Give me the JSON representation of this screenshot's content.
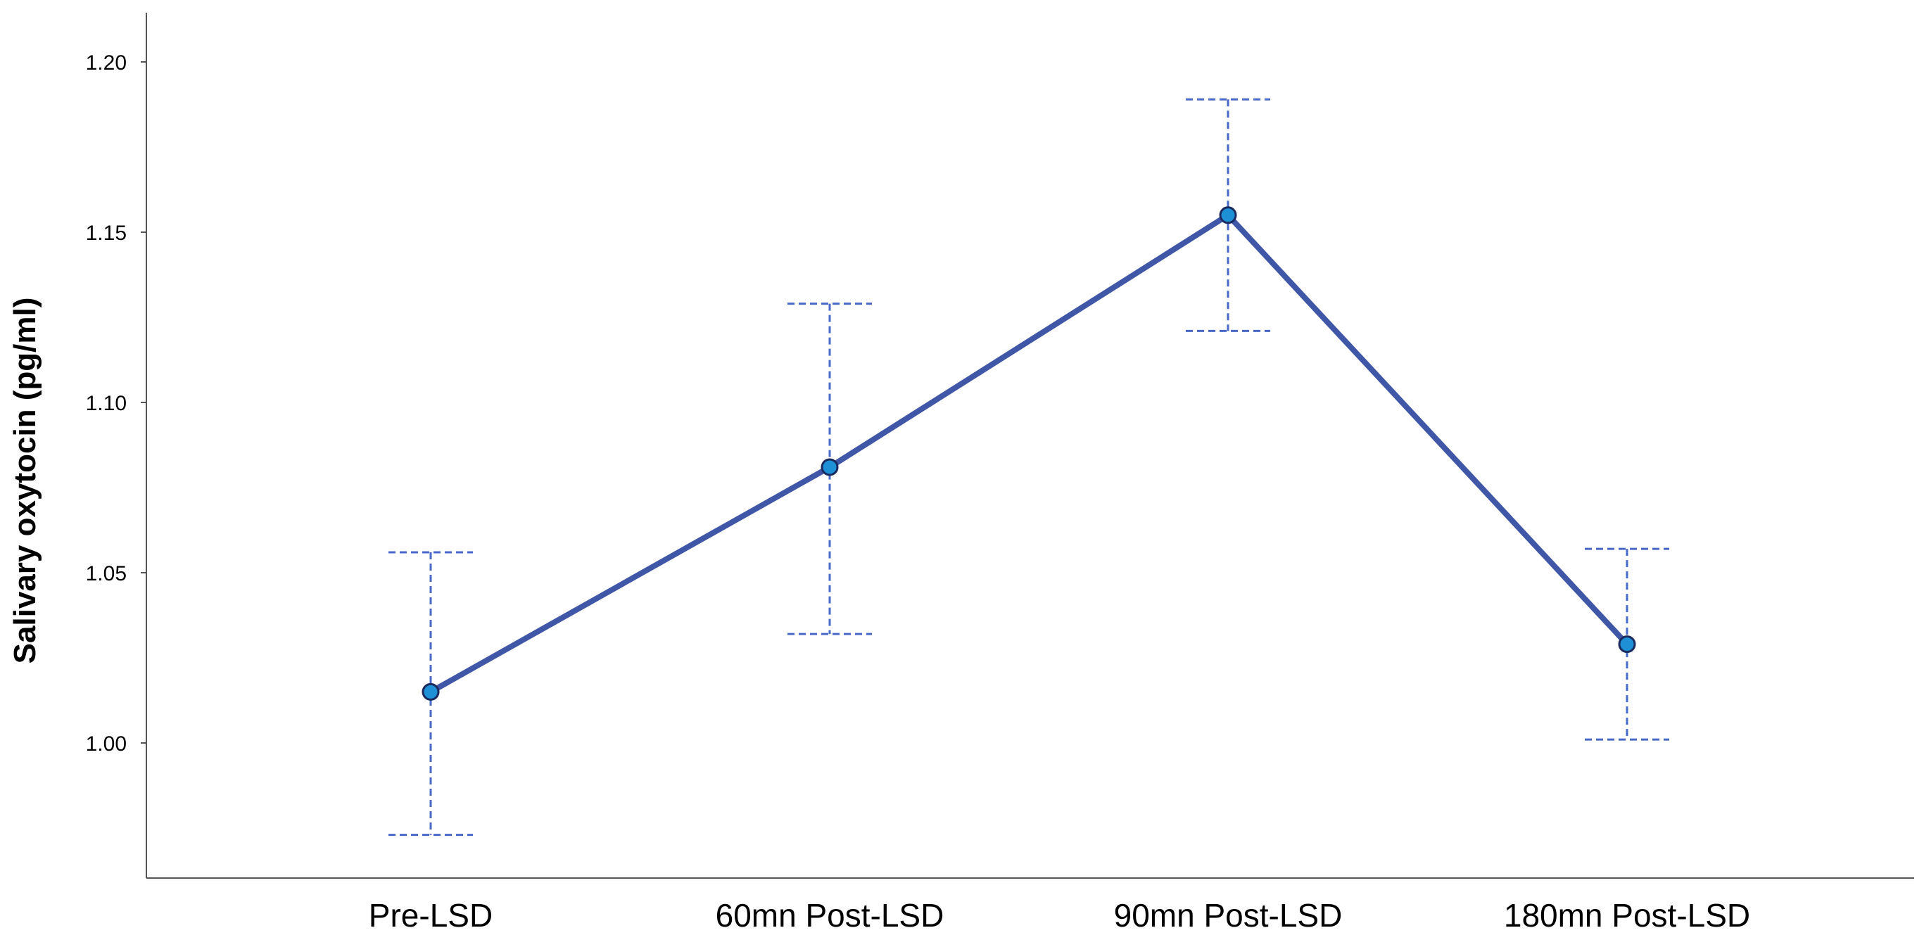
{
  "chart_data": {
    "type": "line",
    "title": "",
    "xlabel": "",
    "ylabel": "Salivary oxytocin (pg/ml)",
    "categories": [
      "Pre-LSD",
      "60mn Post-LSD",
      "90mn Post-LSD",
      "180mn Post-LSD"
    ],
    "series": [
      {
        "name": "Salivary oxytocin",
        "values": [
          1.015,
          1.081,
          1.155,
          1.029
        ],
        "error_lower": [
          0.973,
          1.032,
          1.121,
          1.001
        ],
        "error_upper": [
          1.056,
          1.129,
          1.189,
          1.057
        ]
      }
    ],
    "yticks": [
      1.0,
      1.05,
      1.1,
      1.15,
      1.2
    ],
    "ytick_labels": [
      "1.00",
      "1.05",
      "1.10",
      "1.15",
      "1.20"
    ],
    "ylim": [
      0.962,
      1.21
    ],
    "grid": false,
    "line_color": "#3F57A6",
    "marker_color": "#1E90D6",
    "marker_edge_color": "#1A2A5E",
    "errorbar_color": "#4A68C8",
    "axis_color": "#555555"
  }
}
